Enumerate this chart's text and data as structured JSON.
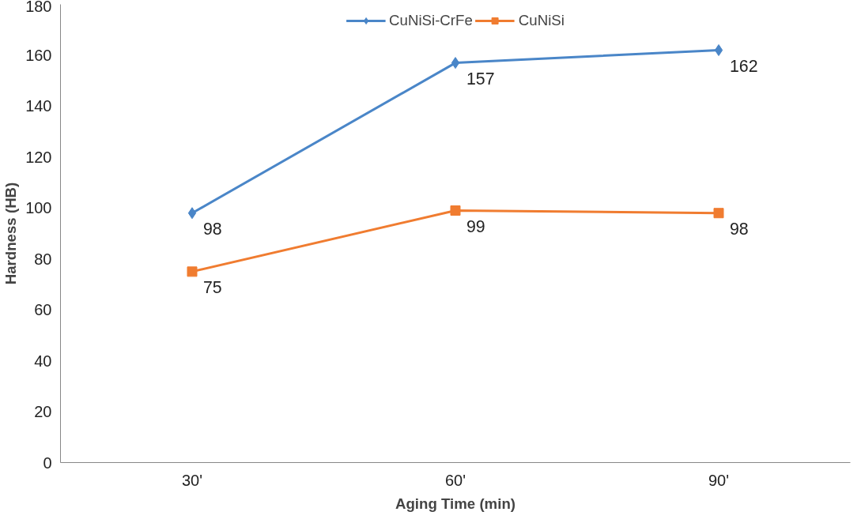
{
  "chart_data": {
    "type": "line",
    "xlabel": "Aging Time (min)",
    "ylabel": "Hardness (HB)",
    "categories": [
      "30'",
      "60'",
      "90'"
    ],
    "series": [
      {
        "name": "CuNiSi-CrFe",
        "color": "#4a86c8",
        "marker": "diamond",
        "values": [
          98,
          157,
          162
        ]
      },
      {
        "name": "CuNiSi",
        "color": "#f07c30",
        "marker": "square",
        "values": [
          75,
          99,
          98
        ]
      }
    ],
    "ylim": [
      0,
      180
    ],
    "yticks": [
      0,
      20,
      40,
      60,
      80,
      100,
      120,
      140,
      160,
      180
    ],
    "grid": false,
    "legend": "top",
    "data_labels": true,
    "line_style": "solid"
  }
}
